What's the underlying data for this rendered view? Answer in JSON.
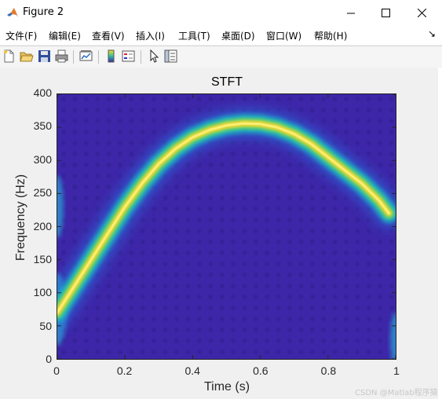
{
  "window": {
    "title": "Figure 2",
    "icon": "matlab-logo-icon"
  },
  "menu": [
    {
      "label": "文件(F)"
    },
    {
      "label": "编辑(E)"
    },
    {
      "label": "查看(V)"
    },
    {
      "label": "插入(I)"
    },
    {
      "label": "工具(T)"
    },
    {
      "label": "桌面(D)"
    },
    {
      "label": "窗口(W)"
    },
    {
      "label": "帮助(H)"
    }
  ],
  "menu_arrow": "↘",
  "toolbar": [
    "new-figure-icon",
    "open-file-icon",
    "save-icon",
    "print-icon",
    "link-plot-icon",
    "colorbar-icon",
    "legend-icon",
    "pointer-icon",
    "property-inspector-icon"
  ],
  "chart_data": {
    "type": "heatmap",
    "title": "STFT",
    "xlabel": "Time (s)",
    "ylabel": "Frequency (Hz)",
    "xlim": [
      0,
      1
    ],
    "ylim": [
      0,
      400
    ],
    "xticks": [
      "0",
      "0.2",
      "0.4",
      "0.6",
      "0.8",
      "1"
    ],
    "yticks": [
      "0",
      "50",
      "100",
      "150",
      "200",
      "250",
      "300",
      "350",
      "400"
    ],
    "colormap": "parula",
    "ridge": {
      "t": [
        0.0,
        0.05,
        0.1,
        0.15,
        0.2,
        0.25,
        0.3,
        0.35,
        0.4,
        0.45,
        0.5,
        0.55,
        0.6,
        0.65,
        0.7,
        0.75,
        0.8,
        0.85,
        0.9,
        0.95,
        0.98
      ],
      "f": [
        70,
        110,
        150,
        190,
        230,
        265,
        295,
        318,
        335,
        346,
        353,
        356,
        355,
        350,
        340,
        325,
        305,
        285,
        265,
        240,
        220
      ]
    }
  },
  "watermark": "CSDN @Matlab程序猿"
}
